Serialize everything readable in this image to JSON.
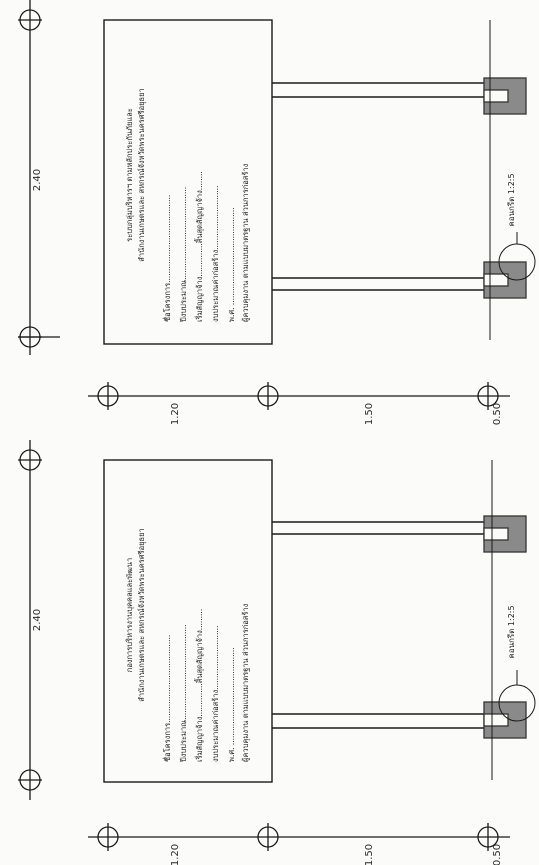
{
  "drawing": {
    "orientation": "rotated 90° counter-clockwise",
    "colors": {
      "line": "#1a1a1a",
      "footing": "#8a8a8a",
      "paper": "#fbfbfa"
    }
  },
  "upper_sign": {
    "width_dim": "2.40",
    "height_dims": [
      "1.20",
      "1.50",
      "0.50"
    ],
    "footing_label": "คอนกรีต 1:2:5",
    "board_lines": [
      "ระบบกลุ่มบริหารฯ ตามหลักประกันภัยและ",
      "สำนักงานเกษตรและ สหกรณ์จังหวัดพระนครศรีอยุธยา",
      "ชื่อโครงการ.....................................",
      "ปีงบประมาณ.......................................",
      "เริ่มสัญญาจ้าง..............สิ้นสุดสัญญาจ้าง........",
      "งบประมาณค่าก่อสร้าง...........................",
      "พ.ศ. .........................................",
      "ผู้ควบคุมงาน    ตามแบบมาตรฐาน ส่วนการก่อสร้าง"
    ]
  },
  "lower_sign": {
    "width_dim": "2.40",
    "height_dims": [
      "1.20",
      "1.50",
      "0.50"
    ],
    "footing_label": "คอนกรีต 1:2:5",
    "board_lines": [
      "กองการบริหารงานบุคคลและพัฒนา",
      "สำนักงานเกษตรและ สหกรณ์จังหวัดพระนครศรีอยุธยา",
      "ชื่อโครงการ.....................................",
      "ปีงบประมาณ........................................",
      "เริ่มสัญญาจ้าง..............สิ้นสุดสัญญาจ้าง.........",
      "งบประมาณค่าก่อสร้าง...........................",
      "พ.ศ. .........................................",
      "ผู้ควบคุมงาน    ตามแบบมาตรฐาน ส่วนการก่อสร้าง"
    ]
  }
}
